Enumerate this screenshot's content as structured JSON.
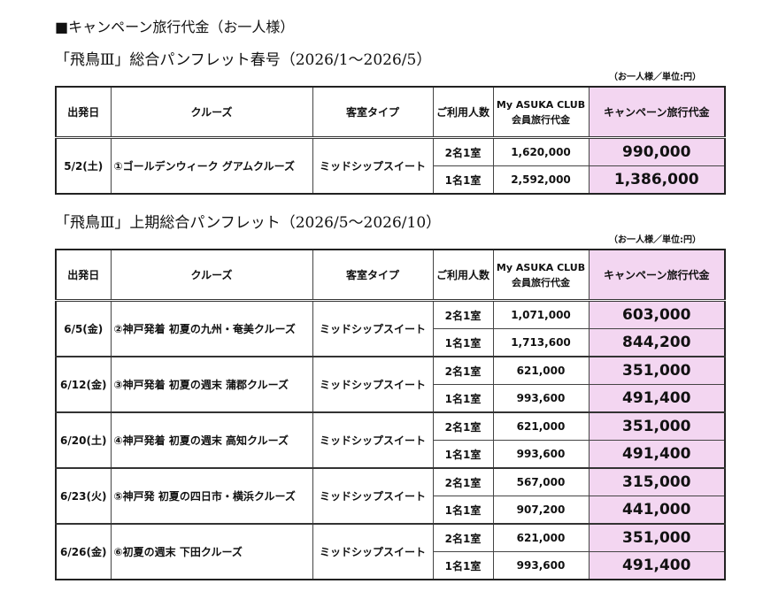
{
  "heading": "■キャンペーン旅行代金（お一人様）",
  "sections": [
    {
      "title": "「飛鳥Ⅲ」総合パンフレット春号（2026/1～2026/5）",
      "unit": "（お一人様／単位:円）",
      "headers": [
        "出発日",
        "クルーズ",
        "客室タイプ",
        "ご利用人数",
        [
          "My ASUKA CLUB",
          "会員旅行代金"
        ],
        "キャンペーン旅行代金"
      ],
      "rows": [
        {
          "date": "5/2(土)",
          "cruise": "①ゴールデンウィーク グアムクルーズ",
          "room": "ミッドシップスイート",
          "prices": [
            {
              "occupancy": "2名1室",
              "member": "1,620,000",
              "campaign": "990,000"
            },
            {
              "occupancy": "1名1室",
              "member": "2,592,000",
              "campaign": "1,386,000"
            }
          ]
        }
      ]
    },
    {
      "title": "「飛鳥Ⅲ」上期総合パンフレット（2026/5～2026/10）",
      "unit": "（お一人様／単位:円）",
      "headers": [
        "出発日",
        "クルーズ",
        "客室タイプ",
        "ご利用人数",
        [
          "My ASUKA CLUB",
          "会員旅行代金"
        ],
        "キャンペーン旅行代金"
      ],
      "rows": [
        {
          "date": "6/5(金)",
          "cruise": "②神戸発着 初夏の九州・奄美クルーズ",
          "room": "ミッドシップスイート",
          "prices": [
            {
              "occupancy": "2名1室",
              "member": "1,071,000",
              "campaign": "603,000"
            },
            {
              "occupancy": "1名1室",
              "member": "1,713,600",
              "campaign": "844,200"
            }
          ]
        },
        {
          "date": "6/12(金)",
          "cruise": "③神戸発着 初夏の週末 蒲郡クルーズ",
          "room": "ミッドシップスイート",
          "prices": [
            {
              "occupancy": "2名1室",
              "member": "621,000",
              "campaign": "351,000"
            },
            {
              "occupancy": "1名1室",
              "member": "993,600",
              "campaign": "491,400"
            }
          ]
        },
        {
          "date": "6/20(土)",
          "cruise": "④神戸発着 初夏の週末 高知クルーズ",
          "room": "ミッドシップスイート",
          "prices": [
            {
              "occupancy": "2名1室",
              "member": "621,000",
              "campaign": "351,000"
            },
            {
              "occupancy": "1名1室",
              "member": "993,600",
              "campaign": "491,400"
            }
          ]
        },
        {
          "date": "6/23(火)",
          "cruise": "⑤神戸発 初夏の四日市・横浜クルーズ",
          "room": "ミッドシップスイート",
          "prices": [
            {
              "occupancy": "2名1室",
              "member": "567,000",
              "campaign": "315,000"
            },
            {
              "occupancy": "1名1室",
              "member": "907,200",
              "campaign": "441,000"
            }
          ]
        },
        {
          "date": "6/26(金)",
          "cruise": "⑥初夏の週末 下田クルーズ",
          "room": "ミッドシップスイート",
          "prices": [
            {
              "occupancy": "2名1室",
              "member": "621,000",
              "campaign": "351,000"
            },
            {
              "occupancy": "1名1室",
              "member": "993,600",
              "campaign": "491,400"
            }
          ]
        }
      ]
    }
  ]
}
